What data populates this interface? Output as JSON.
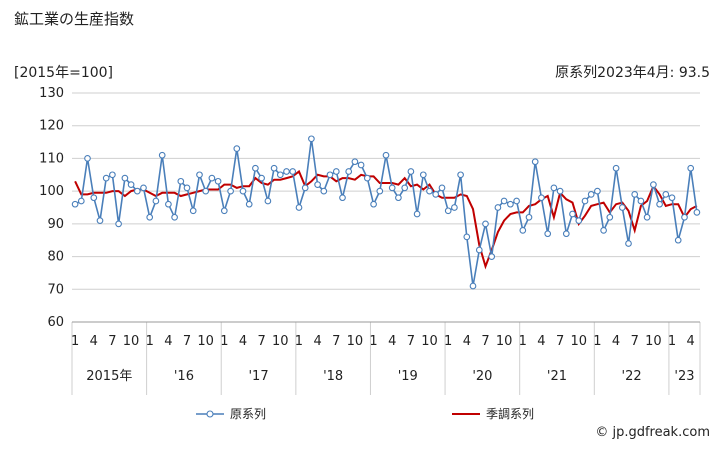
{
  "header": {
    "title": "鉱工業の生産指数",
    "unit_label": "[2015年=100]",
    "latest_value": "原系列2023年4月: 93.5"
  },
  "footer": {
    "credit": "© jp.gdfreak.com"
  },
  "colors": {
    "raw": "#4a7fba",
    "seasonal": "#c00000",
    "grid": "#cfcfcf"
  },
  "chart_data": {
    "type": "line",
    "ylim": [
      60,
      130
    ],
    "yticks": [
      60,
      70,
      80,
      90,
      100,
      110,
      120,
      130
    ],
    "grid": true,
    "legend_position": "bottom",
    "month_tick_labels": [
      "1",
      "4",
      "7",
      "10"
    ],
    "year_labels": [
      "2015年",
      "'16",
      "'17",
      "'18",
      "'19",
      "'20",
      "'21",
      "'22",
      "'23"
    ],
    "x_start": "2015-01",
    "series": [
      {
        "name": "原系列",
        "values": [
          96,
          97,
          110,
          98,
          91,
          104,
          105,
          90,
          104,
          102,
          100,
          101,
          92,
          97,
          111,
          96,
          92,
          103,
          101,
          94,
          105,
          100,
          104,
          103,
          94,
          100,
          113,
          100,
          96,
          107,
          104,
          97,
          107,
          105,
          106,
          106,
          95,
          101,
          116,
          102,
          100,
          105,
          106,
          98,
          106,
          109,
          108,
          104,
          96,
          100,
          111,
          101,
          98,
          101,
          106,
          93,
          105,
          100,
          99,
          101,
          94,
          95,
          105,
          86,
          71,
          82,
          90,
          80,
          95,
          97,
          96,
          97,
          88,
          92,
          109,
          98,
          87,
          101,
          100,
          87,
          93,
          91,
          97,
          99,
          100,
          88,
          92,
          107,
          95,
          84,
          99,
          97,
          92,
          102,
          96,
          99,
          98,
          85,
          92,
          107,
          93.5
        ]
      },
      {
        "name": "季調系列",
        "values": [
          103,
          99,
          99,
          99.5,
          99.5,
          99.5,
          100,
          100,
          98.5,
          100,
          100.5,
          100.5,
          99.5,
          98.5,
          99.5,
          99.5,
          99.5,
          98.5,
          99,
          99.5,
          100,
          100.5,
          100.5,
          100.5,
          102,
          102,
          101,
          101.5,
          101.5,
          104,
          102.5,
          102,
          103.5,
          103.5,
          104,
          104.5,
          106,
          101.5,
          103,
          105,
          104.5,
          104.5,
          103,
          104,
          104,
          103.5,
          105,
          104.5,
          104.5,
          102.5,
          102.5,
          102.5,
          102,
          104,
          101.5,
          102,
          100.5,
          102,
          99,
          98,
          98,
          98,
          99,
          98.5,
          94.5,
          83.5,
          77,
          82,
          87.5,
          91,
          93,
          93.5,
          93.5,
          95.5,
          96,
          97.5,
          98.5,
          92,
          99.5,
          97.5,
          96.5,
          90,
          92.5,
          95.5,
          96,
          96.5,
          93.5,
          96,
          96.5,
          94,
          88,
          95.5,
          97,
          101.5,
          99,
          95.5,
          96,
          96,
          92,
          94.5,
          95.5
        ]
      }
    ]
  }
}
